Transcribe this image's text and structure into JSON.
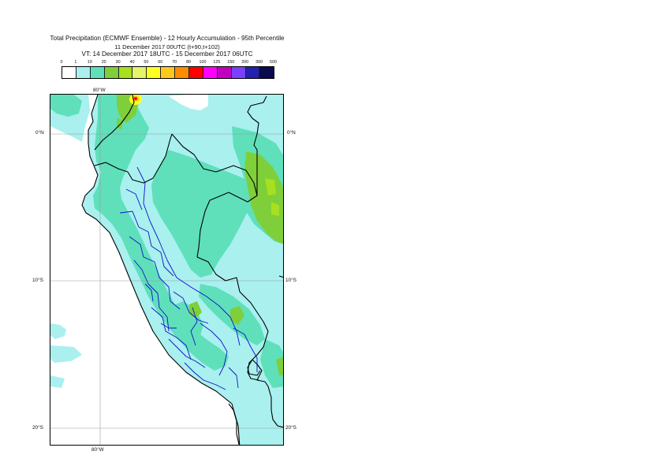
{
  "title": {
    "line1": "Total Precipitation (ECMWF Ensemble) - 12 Hourly Accumulation - 95th Percentile",
    "line2": "11 December 2017 00UTC (t+90,t+102)",
    "line3": "VT: 14 December 2017 18UTC - 15 December 2017 06UTC"
  },
  "legend": {
    "thresholds": [
      "0",
      "1",
      "10",
      "20",
      "30",
      "40",
      "50",
      "60",
      "70",
      "80",
      "100",
      "125",
      "150",
      "200",
      "300",
      "500"
    ],
    "colors": [
      "#ffffff",
      "#a9f0ef",
      "#5fe0bb",
      "#7fcf3a",
      "#a6e01e",
      "#e3f56b",
      "#ffff20",
      "#ffc81e",
      "#ff8c00",
      "#ff0000",
      "#ff00ff",
      "#c000c0",
      "#7b3fff",
      "#2222b0",
      "#0a0a50"
    ]
  },
  "axes": {
    "lon_top": "80°W",
    "lon_bottom": "80°W",
    "lat_left": [
      "0°N",
      "10°S",
      "20°S"
    ],
    "lat_right": [
      "0°N",
      "10°S",
      "20°S"
    ]
  },
  "map_colors": {
    "ocean": "#ffffff",
    "light": "#a9f0ef",
    "mid": "#5fe0bb",
    "green": "#7fcf3a",
    "lime": "#a6e01e",
    "yellow": "#ffff20",
    "orange": "#ffc81e",
    "red": "#ff0000",
    "coast": "#000000",
    "regions": "#1010c8",
    "grid": "#9a9a9a"
  }
}
